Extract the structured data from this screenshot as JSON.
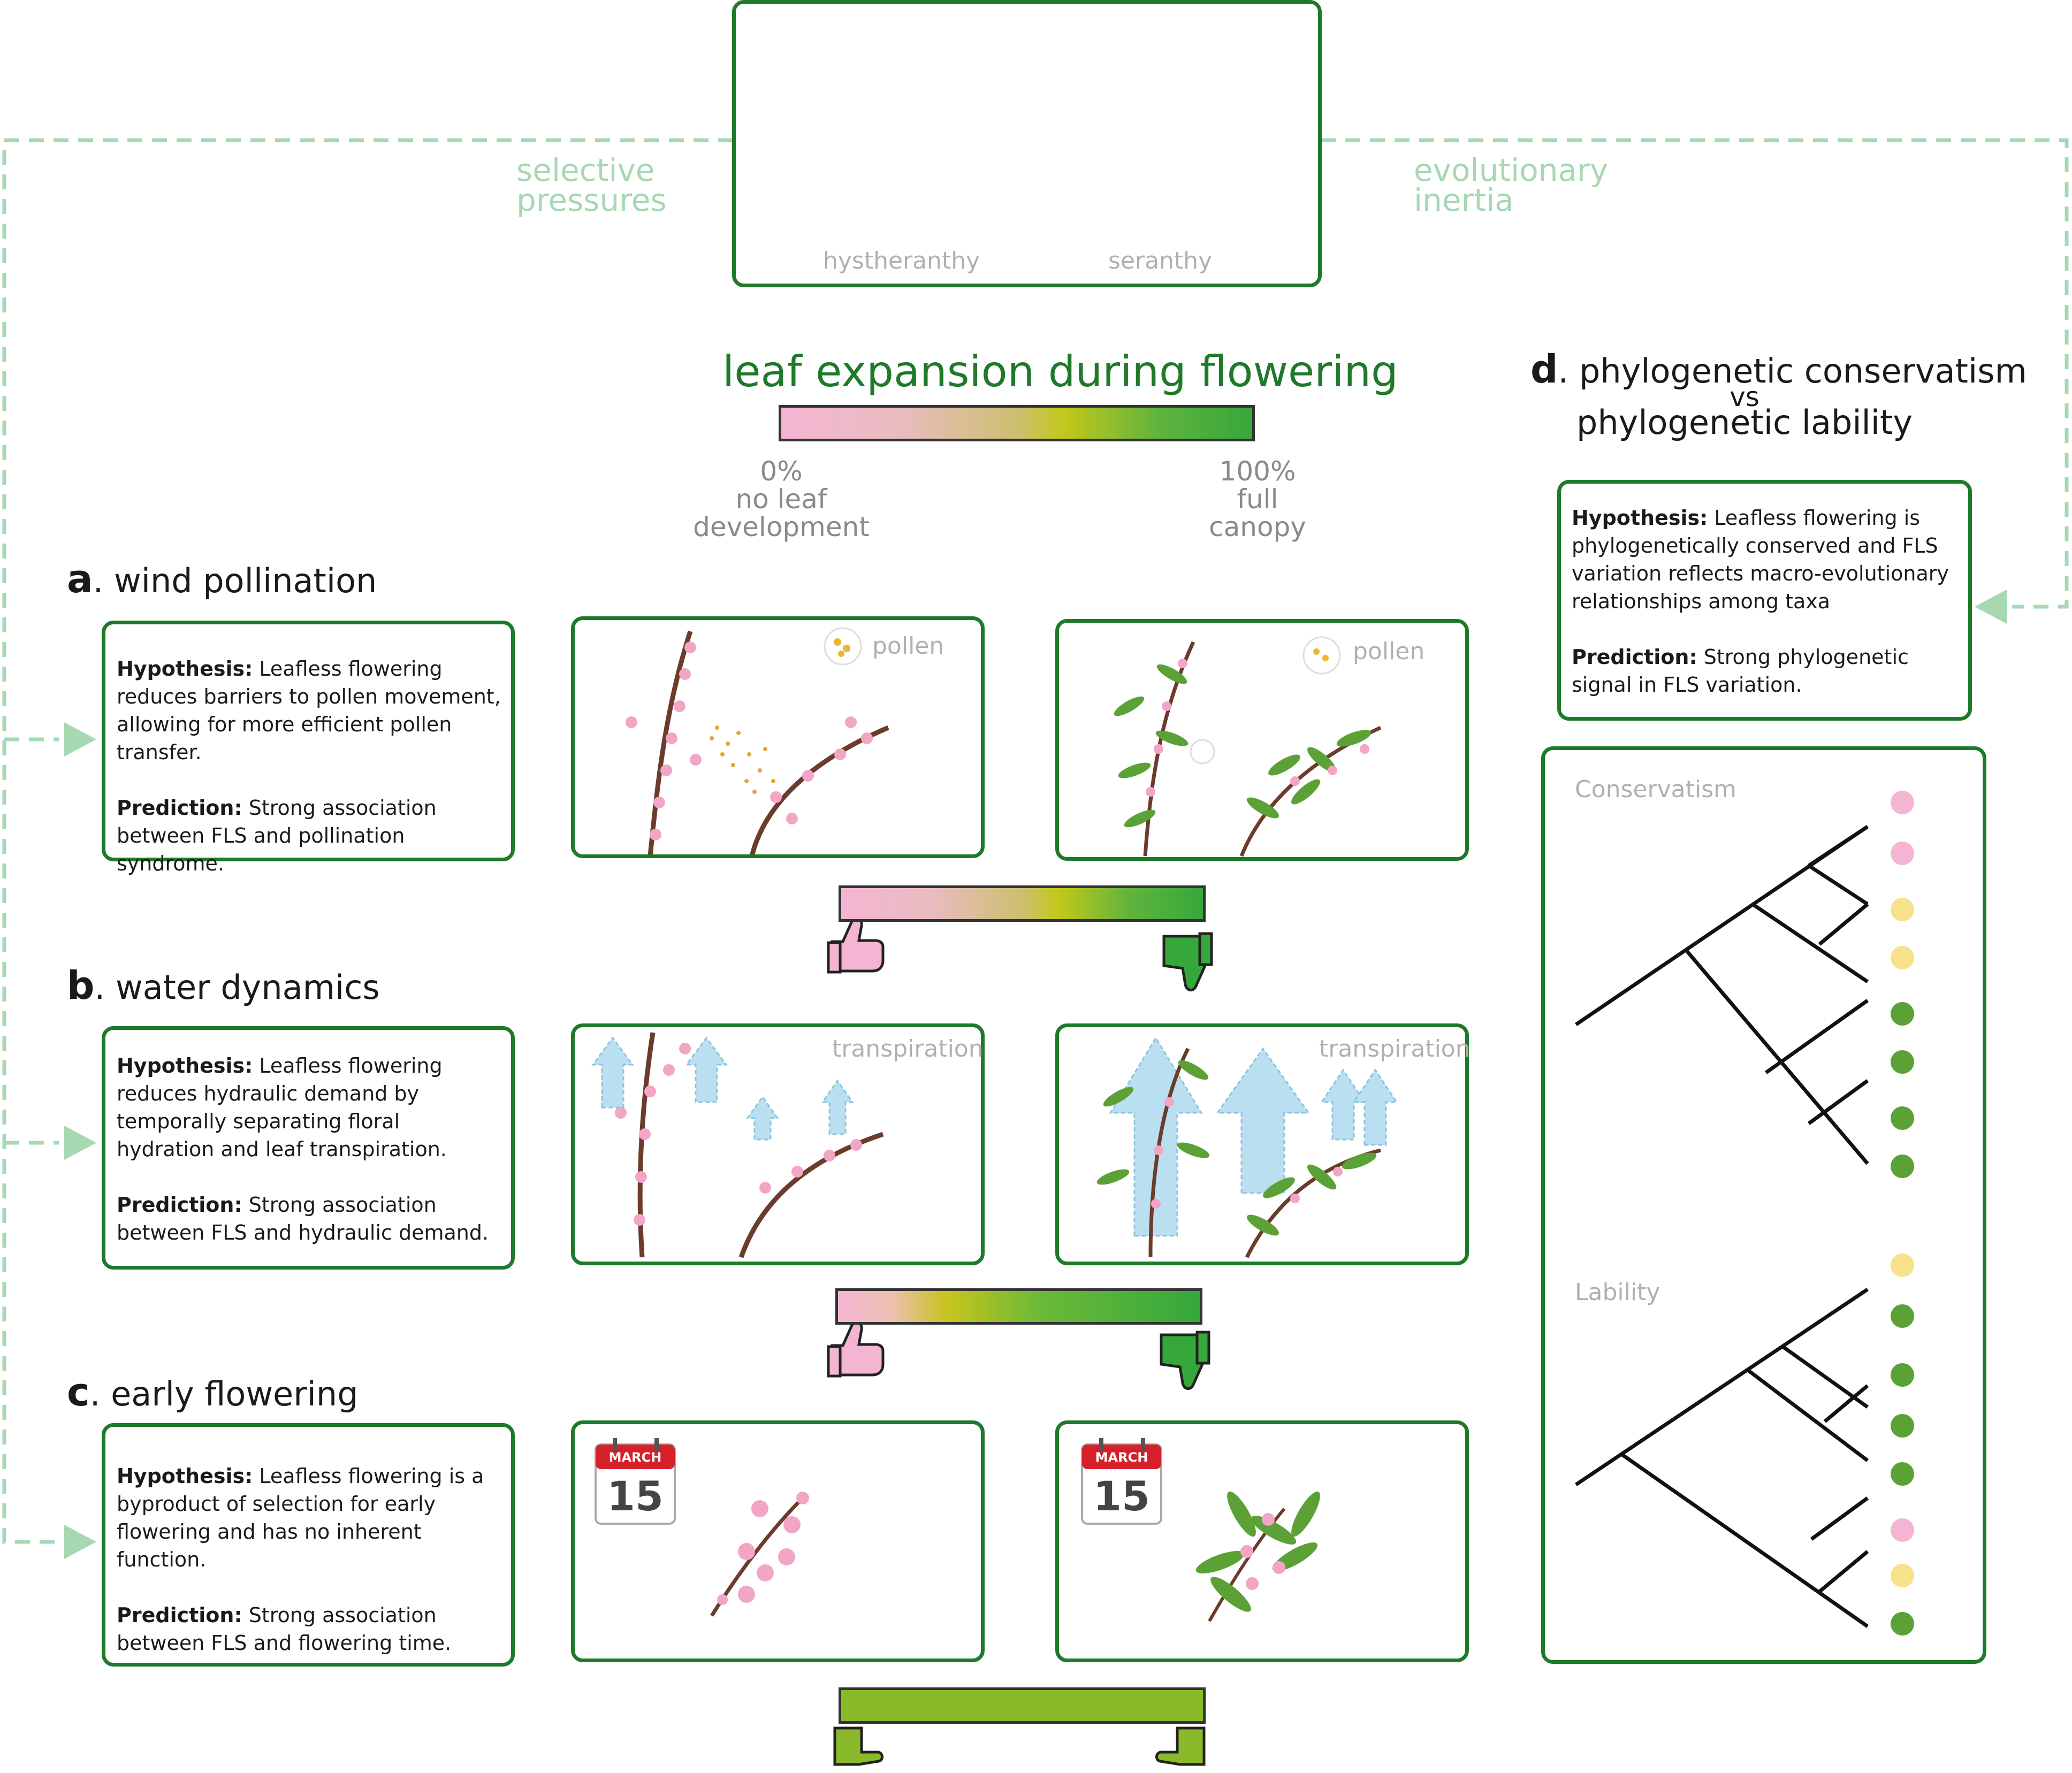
{
  "top": {
    "left_tree_label": "hystheranthy",
    "right_tree_label": "seranthy",
    "left_arrow_text": "selective\npressures",
    "right_arrow_text": "evolutionary\ninertia"
  },
  "scale": {
    "title": "leaf expansion during flowering",
    "left_pct": "0%",
    "left_desc1": "no leaf",
    "left_desc2": "development",
    "right_pct": "100%",
    "right_desc1": "full",
    "right_desc2": "canopy"
  },
  "panel_a": {
    "letter": "a",
    "title": ". wind pollination",
    "hyp_label": "Hypothesis:",
    "hyp_text": " Leafless flowering reduces barriers to pollen movement, allowing for more efficient pollen transfer.",
    "pred_label": "Prediction:",
    "pred_text": " Strong association between FLS and pollination syndrome.",
    "img_label_left": "pollen",
    "img_label_right": "pollen"
  },
  "panel_b": {
    "letter": "b",
    "title": ". water dynamics",
    "hyp_label": "Hypothesis:",
    "hyp_text": " Leafless flowering reduces hydraulic demand by temporally separating floral hydration and leaf transpiration.",
    "pred_label": "Prediction:",
    "pred_text": " Strong association between FLS and hydraulic demand.",
    "img_label_left": "transpiration",
    "img_label_right": "transpiration"
  },
  "panel_c": {
    "letter": "c",
    "title": ". early flowering",
    "hyp_label": "Hypothesis:",
    "hyp_text": " Leafless flowering is a byproduct of selection for early flowering and has no inherent function.",
    "pred_label": "Prediction:",
    "pred_text": " Strong association between FLS and flowering time.",
    "calendar_month": "MARCH",
    "calendar_day": "15"
  },
  "panel_d": {
    "letter": "d",
    "title_line1": ". phylogenetic conservatism",
    "title_line2": "vs",
    "title_line3": "phylogenetic lability",
    "hyp_label": "Hypothesis:",
    "hyp_text": " Leafless flowering is phylogenetically conserved and FLS variation reflects macro-evolutionary relationships among taxa",
    "pred_label": "Prediction:",
    "pred_text": "  Strong phylogenetic signal in FLS variation.",
    "tree1_label": "Conservatism",
    "tree2_label": "Lability"
  },
  "colors": {
    "frame_green": "#1e7a2a",
    "arrow_green": "#a6d8b2",
    "pink": "#f4b5d3",
    "leaf_green": "#36a83b"
  }
}
